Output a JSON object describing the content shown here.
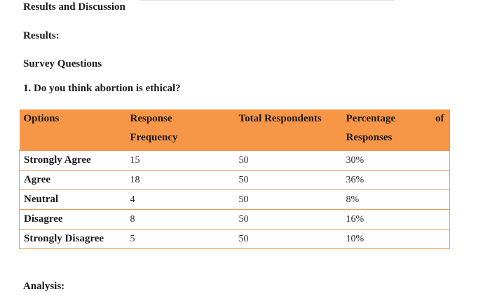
{
  "document": {
    "title": "Results and Discussion",
    "results_label": "Results:",
    "section_title": "Survey Questions",
    "question": "1. Do you think abortion is ethical?",
    "analysis_label": "Analysis:"
  },
  "table": {
    "headers": {
      "options": "Options",
      "response_line1": "Response",
      "response_line2": "Frequency",
      "total": "Total Respondents",
      "percentage_line1": "Percentage",
      "percentage_of": "of",
      "percentage_line2": "Responses"
    },
    "rows": [
      {
        "option": "Strongly Agree",
        "frequency": "15",
        "total": "50",
        "percentage": "30%"
      },
      {
        "option": "Agree",
        "frequency": "18",
        "total": "50",
        "percentage": "36%"
      },
      {
        "option": "Neutral",
        "frequency": "4",
        "total": "50",
        "percentage": "8%"
      },
      {
        "option": "Disagree",
        "frequency": "8",
        "total": "50",
        "percentage": "16%"
      },
      {
        "option": "Strongly Disagree",
        "frequency": "5",
        "total": "50",
        "percentage": "10%"
      }
    ],
    "colors": {
      "header_fill": "#f79646",
      "border": "#f79646"
    }
  }
}
